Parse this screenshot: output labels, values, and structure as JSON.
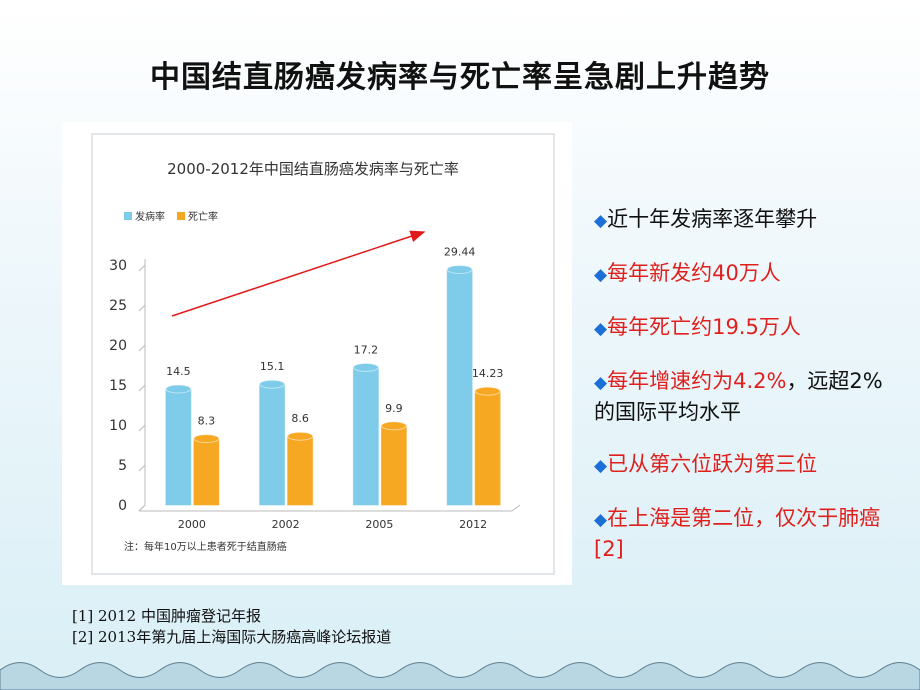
{
  "slide": {
    "title": "中国结直肠癌发病率与死亡率呈急剧上升趋势",
    "bullets": [
      [
        {
          "text": "近十年发病率逐年攀升",
          "color": "#111111"
        }
      ],
      [
        {
          "text": "每年新发约40万人",
          "color": "#e0201c"
        }
      ],
      [
        {
          "text": "每年死亡约19.5万人",
          "color": "#e0201c"
        }
      ],
      [
        {
          "text": "每年增速约为4.2%",
          "color": "#e0201c"
        },
        {
          "text": "，远超2%的国际平均水平",
          "color": "#111111"
        }
      ],
      [
        {
          "text": "已从第六位跃为第三位",
          "color": "#e0201c"
        }
      ],
      [
        {
          "text": "在上海是第二位，仅次于肺癌[2]",
          "color": "#e0201c"
        }
      ]
    ],
    "references": [
      "[1] 2012 中国肿瘤登记年报",
      "[2] 2013年第九届上海国际大肠癌高峰论坛报道"
    ]
  },
  "chart_data": {
    "type": "bar",
    "title": "2000-2012年中国结直肠癌发病率与死亡率",
    "note": "注：每年10万以上患者死于结直肠癌",
    "categories": [
      "2000",
      "2002",
      "2005",
      "2012"
    ],
    "series": [
      {
        "name": "发病率",
        "color": "#7ecbea",
        "values": [
          14.5,
          15.1,
          17.2,
          29.44
        ]
      },
      {
        "name": "死亡率",
        "color": "#f7a823",
        "values": [
          8.3,
          8.6,
          9.9,
          14.23
        ]
      }
    ],
    "ylim": [
      0,
      30
    ],
    "yticks": [
      0,
      5,
      10,
      15,
      20,
      25,
      30
    ],
    "grid": false,
    "legend": "top-left"
  }
}
